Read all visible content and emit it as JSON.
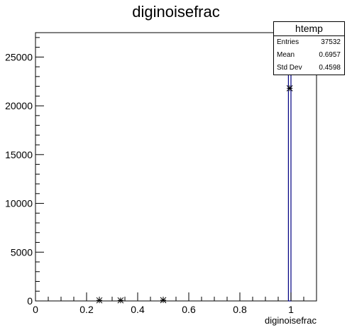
{
  "chart_data": {
    "type": "histogram",
    "title": "diginoisefrac",
    "xlabel": "diginoisefrac",
    "ylabel": "",
    "xlim": [
      0,
      1.1
    ],
    "ylim": [
      0,
      27500
    ],
    "x_ticks": [
      0,
      0.2,
      0.4,
      0.6,
      0.8,
      1
    ],
    "x_tick_labels": [
      "0",
      "0.2",
      "0.4",
      "0.6",
      "0.8",
      "1"
    ],
    "y_ticks": [
      0,
      5000,
      10000,
      15000,
      20000,
      25000
    ],
    "y_tick_labels": [
      "0",
      "5000",
      "10000",
      "15000",
      "20000",
      "25000"
    ],
    "markers": [
      {
        "x": 0.25,
        "y": 60
      },
      {
        "x": 0.333,
        "y": 60
      },
      {
        "x": 0.5,
        "y": 80
      },
      {
        "x": 0.995,
        "y": 21800
      }
    ],
    "bars": [
      {
        "x0": 0.99,
        "x1": 1.0,
        "value": 27500
      }
    ],
    "colors": {
      "bar": "#000080",
      "marker": "#000000",
      "axis": "#000000"
    }
  },
  "stats_box": {
    "title": "htemp",
    "rows": [
      {
        "label": "Entries",
        "value": "37532"
      },
      {
        "label": "Mean",
        "value": "0.6957"
      },
      {
        "label": "Std Dev",
        "value": "0.4598"
      }
    ]
  }
}
